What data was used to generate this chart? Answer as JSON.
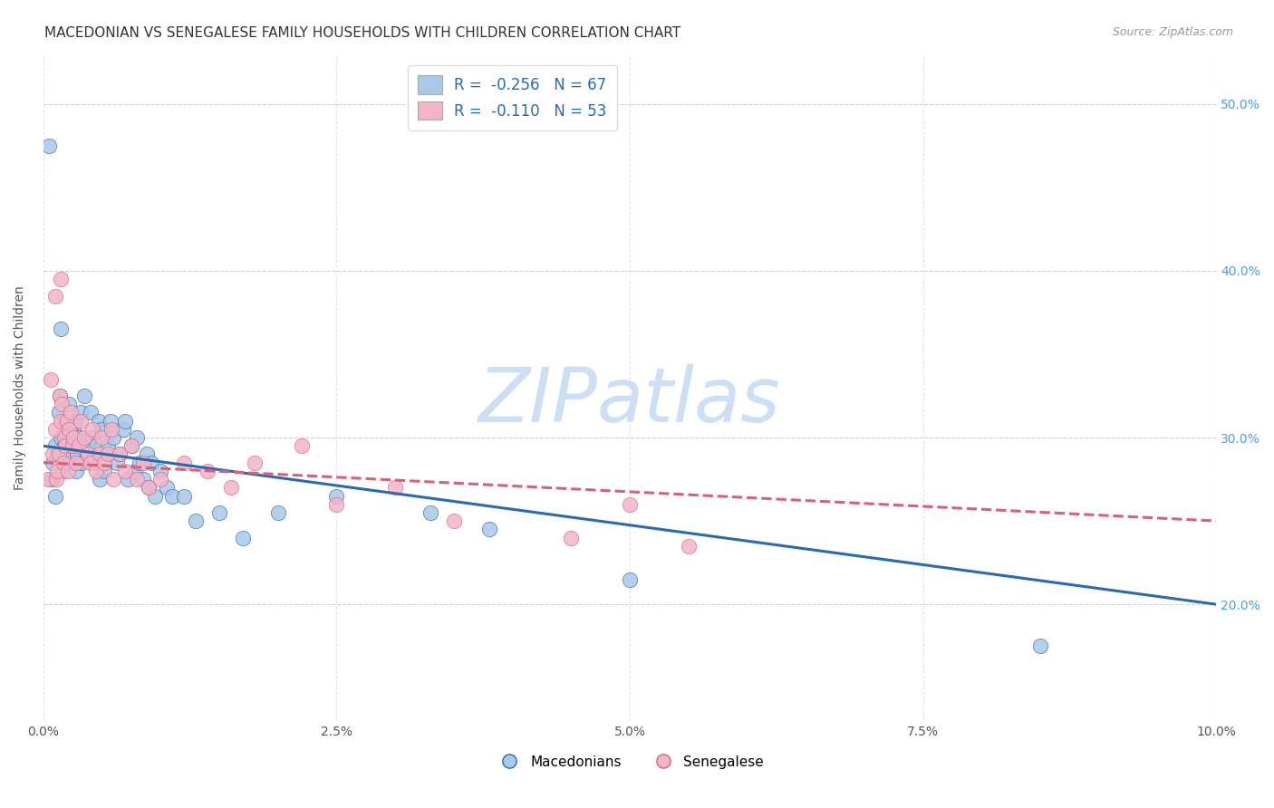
{
  "title": "MACEDONIAN VS SENEGALESE FAMILY HOUSEHOLDS WITH CHILDREN CORRELATION CHART",
  "source": "Source: ZipAtlas.com",
  "ylabel": "Family Households with Children",
  "xlim": [
    0.0,
    10.0
  ],
  "ylim": [
    13.0,
    53.0
  ],
  "blue_r": "-0.256",
  "blue_n": "67",
  "pink_r": "-0.110",
  "pink_n": "53",
  "legend_macedonians": "Macedonians",
  "legend_senegalese": "Senegalese",
  "blue_color": "#aac8e8",
  "pink_color": "#f2b5c8",
  "blue_line_color": "#2a6ab0",
  "pink_line_color": "#d9607a",
  "watermark": "ZIPatlas",
  "blue_x": [
    0.05,
    0.07,
    0.08,
    0.1,
    0.1,
    0.12,
    0.13,
    0.14,
    0.15,
    0.17,
    0.18,
    0.19,
    0.2,
    0.21,
    0.22,
    0.23,
    0.24,
    0.25,
    0.26,
    0.27,
    0.28,
    0.29,
    0.3,
    0.32,
    0.33,
    0.35,
    0.37,
    0.38,
    0.4,
    0.42,
    0.43,
    0.45,
    0.47,
    0.48,
    0.5,
    0.52,
    0.55,
    0.57,
    0.6,
    0.63,
    0.65,
    0.68,
    0.7,
    0.72,
    0.75,
    0.78,
    0.8,
    0.82,
    0.85,
    0.88,
    0.9,
    0.92,
    0.95,
    1.0,
    1.05,
    1.1,
    1.2,
    1.3,
    1.5,
    1.7,
    2.0,
    2.5,
    3.3,
    3.8,
    5.0,
    8.5,
    0.15
  ],
  "blue_y": [
    47.5,
    27.5,
    28.5,
    26.5,
    29.5,
    29.0,
    31.5,
    32.5,
    30.0,
    28.0,
    29.5,
    31.0,
    30.0,
    28.5,
    32.0,
    30.5,
    29.0,
    29.5,
    30.5,
    31.0,
    28.0,
    29.0,
    30.0,
    31.5,
    28.5,
    32.5,
    29.0,
    29.5,
    31.5,
    30.0,
    28.5,
    29.5,
    31.0,
    27.5,
    30.5,
    28.0,
    29.5,
    31.0,
    30.0,
    28.5,
    29.0,
    30.5,
    31.0,
    27.5,
    29.5,
    28.0,
    30.0,
    28.5,
    27.5,
    29.0,
    27.0,
    28.5,
    26.5,
    28.0,
    27.0,
    26.5,
    26.5,
    25.0,
    25.5,
    24.0,
    25.5,
    26.5,
    25.5,
    24.5,
    21.5,
    17.5,
    36.5
  ],
  "pink_x": [
    0.04,
    0.06,
    0.08,
    0.1,
    0.11,
    0.12,
    0.13,
    0.14,
    0.15,
    0.16,
    0.17,
    0.18,
    0.19,
    0.2,
    0.21,
    0.22,
    0.23,
    0.25,
    0.26,
    0.28,
    0.3,
    0.32,
    0.35,
    0.38,
    0.4,
    0.42,
    0.45,
    0.48,
    0.5,
    0.52,
    0.55,
    0.58,
    0.6,
    0.65,
    0.7,
    0.75,
    0.8,
    0.85,
    0.9,
    1.0,
    1.2,
    1.4,
    1.6,
    1.8,
    2.2,
    2.5,
    3.0,
    3.5,
    4.5,
    5.0,
    5.5,
    0.1,
    0.15
  ],
  "pink_y": [
    27.5,
    33.5,
    29.0,
    30.5,
    27.5,
    28.0,
    29.0,
    32.5,
    31.0,
    32.0,
    28.5,
    30.0,
    29.5,
    31.0,
    28.0,
    30.5,
    31.5,
    29.5,
    30.0,
    28.5,
    29.5,
    31.0,
    30.0,
    29.0,
    28.5,
    30.5,
    28.0,
    29.0,
    30.0,
    28.5,
    29.0,
    30.5,
    27.5,
    29.0,
    28.0,
    29.5,
    27.5,
    28.5,
    27.0,
    27.5,
    28.5,
    28.0,
    27.0,
    28.5,
    29.5,
    26.0,
    27.0,
    25.0,
    24.0,
    26.0,
    23.5,
    38.5,
    39.5
  ],
  "blue_line_x0": 0.0,
  "blue_line_y0": 29.5,
  "blue_line_x1": 10.0,
  "blue_line_y1": 20.0,
  "pink_line_x0": 0.0,
  "pink_line_y0": 28.5,
  "pink_line_x1": 10.0,
  "pink_line_y1": 25.0,
  "bg_color": "#ffffff",
  "grid_color": "#cccccc",
  "title_fontsize": 11,
  "label_fontsize": 10,
  "tick_fontsize": 10,
  "watermark_color": "#ccdff5",
  "watermark_fontsize": 60,
  "legend_text_color": "#2a6ab0"
}
